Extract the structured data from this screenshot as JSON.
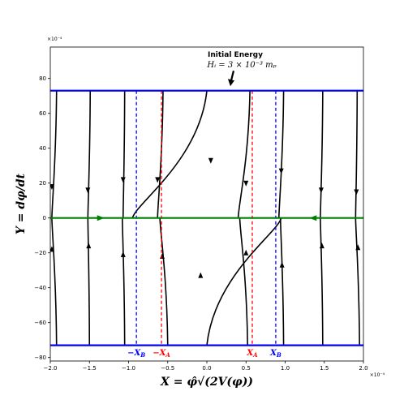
{
  "chart_data": {
    "type": "line",
    "title": "",
    "xlabel": "X = φ̂√(2V(φ))",
    "ylabel": "Y = dφ/dt",
    "x_scale_label": "×10⁻⁴",
    "y_scale_label": "×10⁻⁴",
    "xlim": [
      -2.0,
      2.0
    ],
    "ylim": [
      -82,
      98
    ],
    "x_ticks": [
      -2.0,
      -1.5,
      -1.0,
      -0.5,
      0.0,
      0.5,
      1.0,
      1.5,
      2.0
    ],
    "x_tick_labels": [
      "−2.0",
      "−1.5",
      "−1.0",
      "−0.5",
      "0.0",
      "0.5",
      "1.0",
      "1.5",
      "2.0"
    ],
    "y_ticks": [
      -80,
      -60,
      -40,
      -20,
      0,
      20,
      40,
      60,
      80
    ],
    "y_tick_labels": [
      "−80",
      "−60",
      "−40",
      "−20",
      "0",
      "20",
      "40",
      "60",
      "80"
    ],
    "grid": false,
    "energy_bounds": {
      "upper": 73,
      "lower": -73,
      "color": "#0000ff"
    },
    "phase_axis": {
      "y": 0,
      "color": "#008000"
    },
    "markers": [
      {
        "x": -0.9,
        "label": "−X_B",
        "main": "−X",
        "sub": "B",
        "color": "#0000ff"
      },
      {
        "x": -0.58,
        "label": "−X_A",
        "main": "−X",
        "sub": "A",
        "color": "#ff0000"
      },
      {
        "x": 0.58,
        "label": "X_A",
        "main": "X",
        "sub": "A",
        "color": "#ff0000"
      },
      {
        "x": 0.88,
        "label": "X_B",
        "main": "X",
        "sub": "B",
        "color": "#0000ff"
      }
    ],
    "annotation": {
      "title": "Initial Energy",
      "formula": "Hᵢ = 3 × 10⁻³ mₚ",
      "arrow_to": [
        0.3,
        76
      ]
    },
    "trajectories": {
      "upper": [
        {
          "x0": -1.92,
          "x1": -1.98,
          "arrow": [
            -1.98,
            18
          ]
        },
        {
          "x0": -1.49,
          "x1": -1.52,
          "arrow": [
            -1.52,
            16
          ]
        },
        {
          "x0": -1.05,
          "x1": -1.07,
          "arrow": [
            -1.07,
            22
          ]
        },
        {
          "x0": -0.56,
          "x1": -0.63,
          "arrow": [
            -0.63,
            22
          ]
        },
        {
          "x0": 0.0,
          "x1": -0.95,
          "arrow": [
            0.05,
            33
          ]
        },
        {
          "x0": 0.55,
          "x1": 0.4,
          "arrow": [
            0.5,
            20
          ]
        },
        {
          "x0": 0.98,
          "x1": 0.92,
          "arrow": [
            0.95,
            27
          ]
        },
        {
          "x0": 1.48,
          "x1": 1.45,
          "arrow": [
            1.46,
            16
          ]
        },
        {
          "x0": 1.92,
          "x1": 1.9,
          "arrow": [
            1.91,
            15
          ]
        }
      ],
      "lower": [
        {
          "x0": -1.92,
          "x1": -1.98,
          "arrow": [
            -1.98,
            -18
          ]
        },
        {
          "x0": -1.5,
          "x1": -1.52,
          "arrow": [
            -1.51,
            -16
          ]
        },
        {
          "x0": -1.05,
          "x1": -1.08,
          "arrow": [
            -1.07,
            -21
          ]
        },
        {
          "x0": -0.5,
          "x1": -0.6,
          "arrow": [
            -0.57,
            -22
          ]
        },
        {
          "x0": 0.0,
          "x1": 0.95,
          "arrow": [
            -0.08,
            -33
          ]
        },
        {
          "x0": 0.52,
          "x1": 0.42,
          "arrow": [
            0.5,
            -20
          ]
        },
        {
          "x0": 0.98,
          "x1": 0.94,
          "arrow": [
            0.96,
            -27
          ]
        },
        {
          "x0": 1.48,
          "x1": 1.45,
          "arrow": [
            1.47,
            -16
          ]
        },
        {
          "x0": 1.95,
          "x1": 1.9,
          "arrow": [
            1.93,
            -17
          ]
        }
      ],
      "separatrix": {
        "x0": -2.0,
        "x1": 2.0,
        "arrows": [
          {
            "x": -1.35,
            "dir": "right"
          },
          {
            "x": 1.35,
            "dir": "left"
          }
        ]
      }
    }
  }
}
